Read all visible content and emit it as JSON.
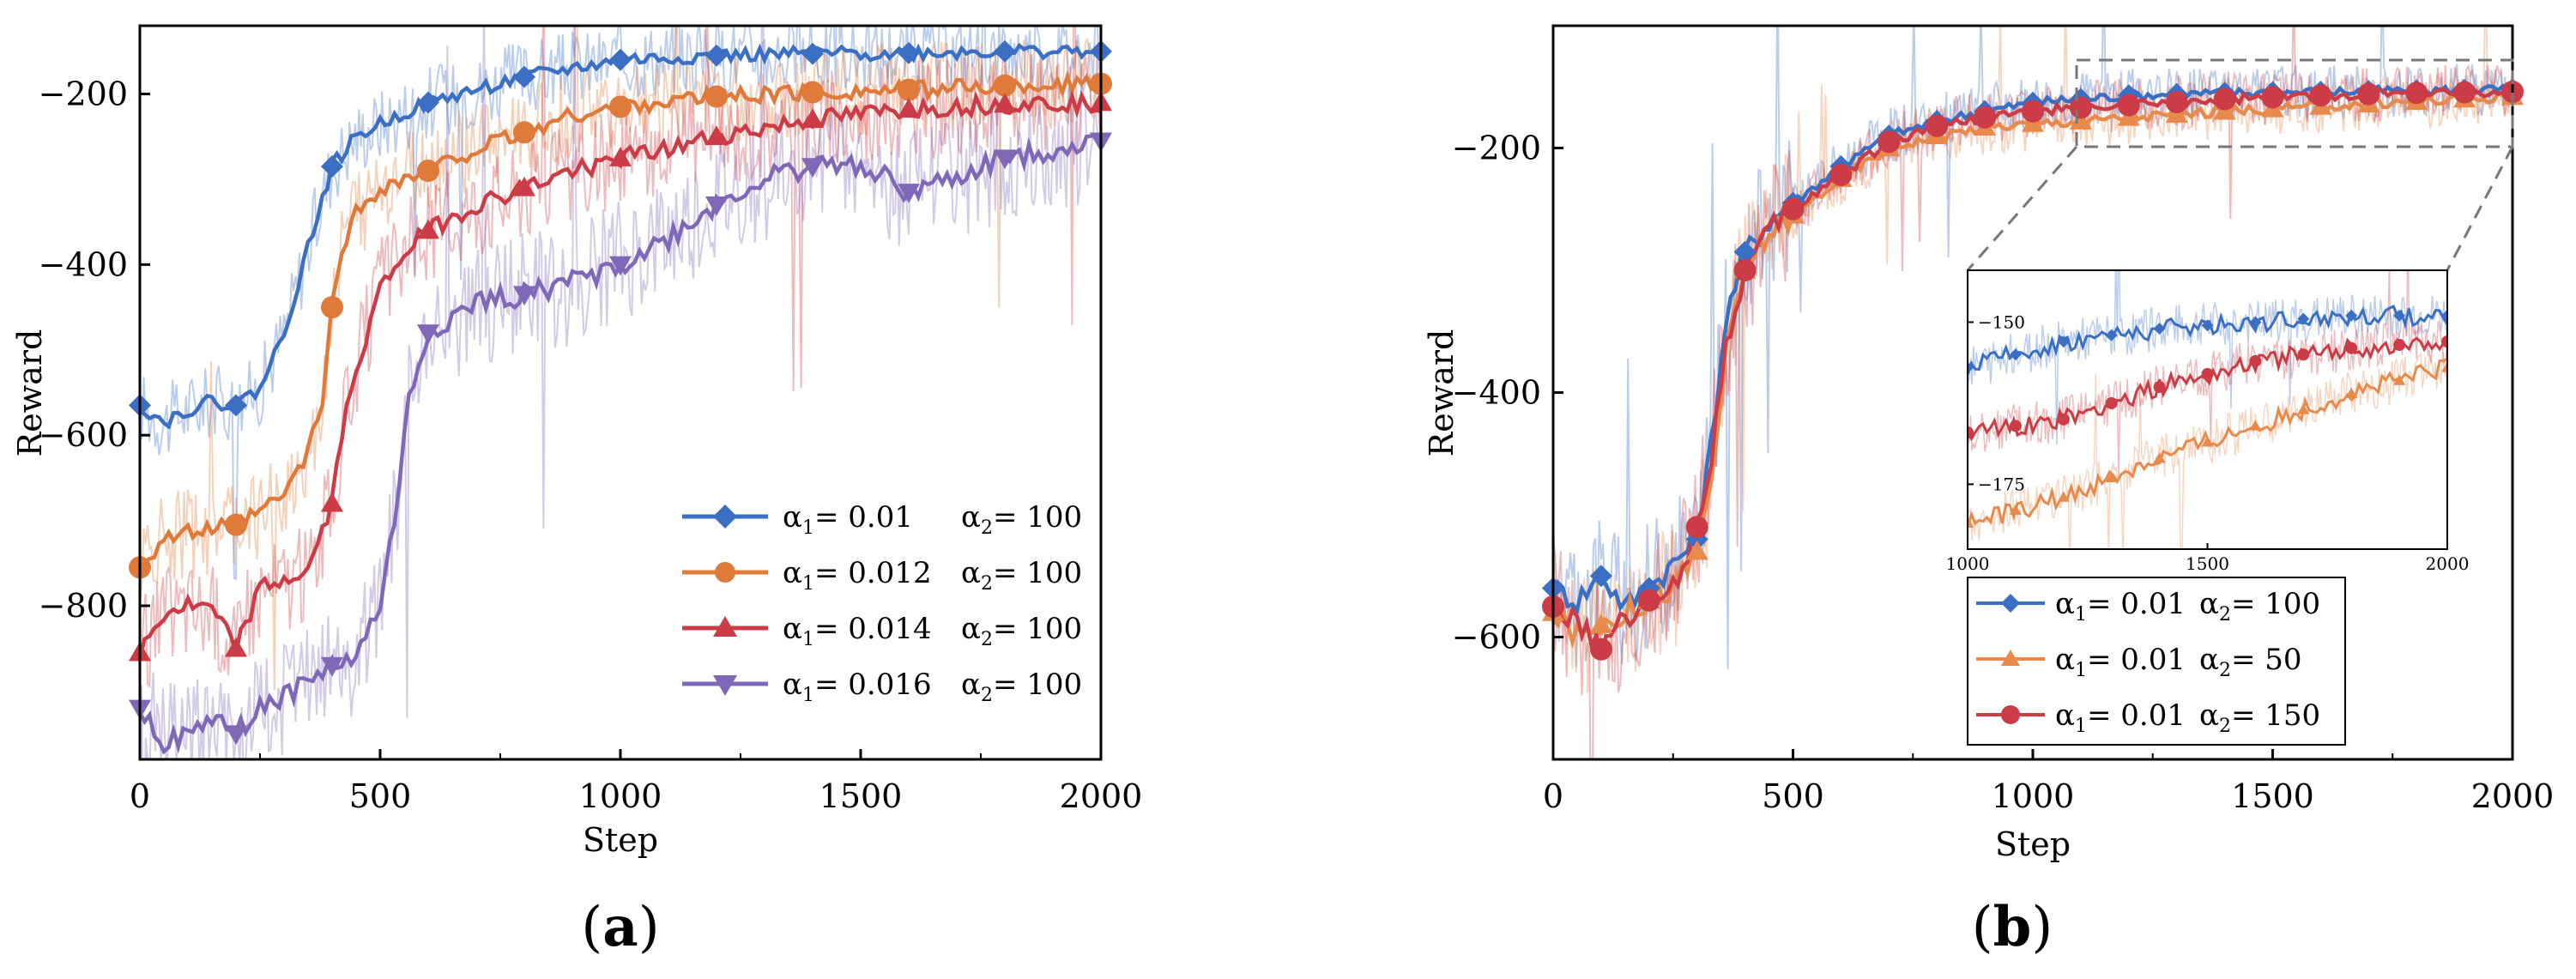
{
  "chart_data": [
    {
      "type": "line",
      "panel": "a",
      "panel_label": {
        "open": "(",
        "letter": "a",
        "close": ")"
      },
      "xlabel": "Step",
      "ylabel": "Reward",
      "xlim": [
        0,
        2000
      ],
      "ylim": [
        -980,
        -120
      ],
      "xticks": [
        0,
        500,
        1000,
        1500,
        2000
      ],
      "yticks": [
        -200,
        -400,
        -600,
        -800
      ],
      "grid": false,
      "legend_position": "bottom-right",
      "series": [
        {
          "name": "α1 = 0.01  α2 = 100",
          "legend": {
            "a1": "α",
            "a1sub": "1",
            "a1val": "= 0.01",
            "a2": "α",
            "a2sub": "2",
            "a2val": "= 100"
          },
          "color": "#3b6fc4",
          "marker": "diamond",
          "x": [
            0,
            50,
            100,
            150,
            200,
            250,
            300,
            350,
            400,
            450,
            500,
            550,
            600,
            700,
            800,
            900,
            1000,
            1100,
            1200,
            1400,
            1600,
            1800,
            2000
          ],
          "y": [
            -565,
            -585,
            -570,
            -560,
            -565,
            -545,
            -480,
            -380,
            -285,
            -250,
            -235,
            -222,
            -210,
            -195,
            -180,
            -170,
            -160,
            -158,
            -155,
            -153,
            -152,
            -150,
            -150
          ],
          "marker_x": [
            0,
            200,
            400,
            600,
            800,
            1000,
            1200,
            1400,
            1600,
            1800,
            2000
          ]
        },
        {
          "name": "α1 = 0.012  α2 = 100",
          "legend": {
            "a1": "α",
            "a1sub": "1",
            "a1val": "= 0.012",
            "a2": "α",
            "a2sub": "2",
            "a2val": "= 100"
          },
          "color": "#e07a3a",
          "marker": "circle",
          "x": [
            0,
            50,
            100,
            150,
            200,
            250,
            300,
            350,
            380,
            400,
            420,
            450,
            500,
            600,
            700,
            800,
            900,
            1000,
            1100,
            1200,
            1400,
            1600,
            1800,
            2000
          ],
          "y": [
            -755,
            -720,
            -715,
            -710,
            -705,
            -690,
            -670,
            -620,
            -560,
            -450,
            -380,
            -340,
            -310,
            -290,
            -265,
            -245,
            -225,
            -215,
            -208,
            -203,
            -198,
            -195,
            -190,
            -188
          ],
          "marker_x": [
            0,
            200,
            400,
            600,
            800,
            1000,
            1200,
            1400,
            1600,
            1800,
            2000
          ]
        },
        {
          "name": "α1 = 0.014  α2 = 100",
          "legend": {
            "a1": "α",
            "a1sub": "1",
            "a1val": "= 0.014",
            "a2": "α",
            "a2sub": "2",
            "a2val": "= 100"
          },
          "color": "#cc3c46",
          "marker": "triangle-up",
          "x": [
            0,
            50,
            100,
            150,
            200,
            250,
            300,
            350,
            400,
            420,
            450,
            500,
            550,
            600,
            700,
            800,
            900,
            1000,
            1100,
            1200,
            1400,
            1600,
            1800,
            2000
          ],
          "y": [
            -855,
            -810,
            -800,
            -805,
            -850,
            -780,
            -770,
            -760,
            -680,
            -600,
            -520,
            -430,
            -385,
            -360,
            -330,
            -310,
            -290,
            -275,
            -265,
            -250,
            -230,
            -218,
            -212,
            -210
          ],
          "marker_x": [
            0,
            200,
            400,
            600,
            800,
            1000,
            1200,
            1400,
            1600,
            1800,
            2000
          ]
        },
        {
          "name": "α1 = 0.016  α2 = 100",
          "legend": {
            "a1": "α",
            "a1sub": "1",
            "a1val": "= 0.016",
            "a2": "α",
            "a2sub": "2",
            "a2val": "= 100"
          },
          "color": "#8068b8",
          "marker": "triangle-down",
          "x": [
            0,
            50,
            100,
            150,
            200,
            250,
            300,
            350,
            400,
            450,
            500,
            530,
            560,
            600,
            700,
            800,
            900,
            1000,
            1100,
            1200,
            1300,
            1400,
            1500,
            1600,
            1700,
            1800,
            1900,
            2000
          ],
          "y": [
            -920,
            -960,
            -955,
            -930,
            -950,
            -920,
            -905,
            -890,
            -870,
            -860,
            -800,
            -700,
            -560,
            -480,
            -445,
            -435,
            -420,
            -400,
            -370,
            -330,
            -300,
            -285,
            -280,
            -315,
            -300,
            -275,
            -265,
            -255
          ],
          "marker_x": [
            0,
            200,
            400,
            600,
            800,
            1000,
            1200,
            1400,
            1600,
            1800,
            2000
          ]
        }
      ]
    },
    {
      "type": "line",
      "panel": "b",
      "panel_label": {
        "open": "(",
        "letter": "b",
        "close": ")"
      },
      "xlabel": "Step",
      "ylabel": "Reward",
      "xlim": [
        0,
        2000
      ],
      "ylim": [
        -700,
        -100
      ],
      "xticks": [
        0,
        500,
        1000,
        1500,
        2000
      ],
      "yticks": [
        -200,
        -400,
        -600
      ],
      "grid": false,
      "legend_position": "lower-right inside plot",
      "series": [
        {
          "name": "α1 = 0.01  α2 = 100",
          "legend": {
            "a1": "α",
            "a1sub": "1",
            "a1val": "= 0.01",
            "a2": "α",
            "a2sub": "2",
            "a2val": "= 100"
          },
          "color": "#3b6fc4",
          "marker": "diamond",
          "x": [
            0,
            50,
            100,
            150,
            200,
            250,
            300,
            330,
            360,
            400,
            450,
            500,
            600,
            700,
            800,
            900,
            1000,
            1100,
            1200,
            1400,
            1600,
            1800,
            2000
          ],
          "y": [
            -560,
            -570,
            -550,
            -575,
            -560,
            -540,
            -520,
            -440,
            -340,
            -285,
            -260,
            -245,
            -215,
            -190,
            -178,
            -170,
            -163,
            -160,
            -157,
            -155,
            -154,
            -153,
            -152
          ],
          "marker_x": [
            0,
            100,
            200,
            300,
            400,
            500,
            600,
            700,
            800,
            900,
            1000,
            1100,
            1200,
            1300,
            1400,
            1500,
            1600,
            1700,
            1800,
            1900,
            2000
          ]
        },
        {
          "name": "α1 = 0.01  α2 = 50",
          "legend": {
            "a1": "α",
            "a1sub": "1",
            "a1val": "= 0.01",
            "a2": "α",
            "a2sub": "2",
            "a2val": "= 50"
          },
          "color": "#e88a4c",
          "marker": "triangle-up",
          "x": [
            0,
            50,
            100,
            150,
            200,
            250,
            300,
            330,
            360,
            400,
            450,
            500,
            600,
            700,
            800,
            900,
            1000,
            1100,
            1200,
            1400,
            1600,
            1800,
            2000
          ],
          "y": [
            -580,
            -600,
            -590,
            -580,
            -570,
            -560,
            -530,
            -470,
            -370,
            -300,
            -270,
            -255,
            -225,
            -200,
            -190,
            -183,
            -180,
            -178,
            -175,
            -170,
            -166,
            -162,
            -158
          ],
          "marker_x": [
            0,
            100,
            200,
            300,
            400,
            500,
            600,
            700,
            800,
            900,
            1000,
            1100,
            1200,
            1300,
            1400,
            1500,
            1600,
            1700,
            1800,
            1900,
            2000
          ]
        },
        {
          "name": "α1 = 0.01  α2 = 150",
          "legend": {
            "a1": "α",
            "a1sub": "1",
            "a1val": "= 0.01",
            "a2": "α",
            "a2sub": "2",
            "a2val": "= 150"
          },
          "color": "#cc3c46",
          "marker": "circle",
          "x": [
            0,
            50,
            100,
            150,
            200,
            250,
            300,
            330,
            360,
            400,
            450,
            500,
            600,
            700,
            800,
            900,
            1000,
            1100,
            1200,
            1400,
            1600,
            1800,
            2000
          ],
          "y": [
            -575,
            -590,
            -610,
            -585,
            -570,
            -560,
            -510,
            -450,
            -360,
            -300,
            -268,
            -250,
            -222,
            -195,
            -182,
            -175,
            -170,
            -167,
            -165,
            -160,
            -157,
            -155,
            -154
          ],
          "marker_x": [
            0,
            100,
            200,
            300,
            400,
            500,
            600,
            700,
            800,
            900,
            1000,
            1100,
            1200,
            1300,
            1400,
            1500,
            1600,
            1700,
            1800,
            1900,
            2000
          ]
        }
      ],
      "inset": {
        "xlim": [
          1000,
          2000
        ],
        "ylim": [
          -185,
          -142
        ],
        "xticks": [
          1000,
          1500,
          2000
        ],
        "yticks": [
          -150,
          -175
        ],
        "zoom_region": {
          "x": [
            1100,
            2000
          ],
          "y": [
            -200,
            -125
          ]
        }
      }
    }
  ]
}
